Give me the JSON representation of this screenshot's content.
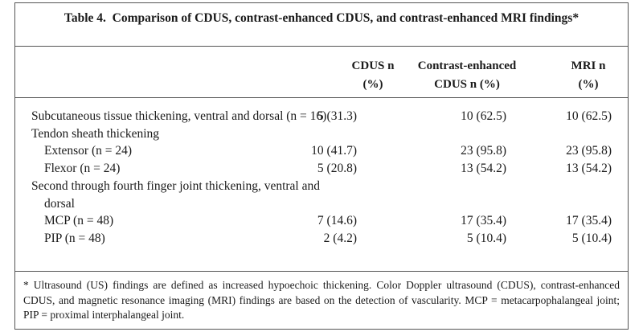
{
  "table": {
    "title": "Table 4.  Comparison of CDUS, contrast-enhanced CDUS, and contrast-enhanced MRI findings*",
    "columns": [
      "CDUS n (%)",
      "Contrast-enhanced CDUS n (%)",
      "MRI n (%)"
    ],
    "rows": [
      {
        "label": "Subcutaneous tissue thickening, ventral and dorsal (n = 16)",
        "values": [
          "5 (31.3)",
          "10 (62.5)",
          "10 (62.5)"
        ]
      },
      {
        "label": "Tendon sheath thickening"
      },
      {
        "label": "Extensor (n = 24)",
        "values": [
          "10 (41.7)",
          "23 (95.8)",
          "23 (95.8)"
        ]
      },
      {
        "label": "Flexor (n = 24)",
        "values": [
          "5 (20.8)",
          "13 (54.2)",
          "13 (54.2)"
        ]
      },
      {
        "label": "Second through fourth finger joint thickening, ventral and dorsal"
      },
      {
        "label": "MCP (n = 48)",
        "values": [
          "7 (14.6)",
          "17 (35.4)",
          "17 (35.4)"
        ]
      },
      {
        "label": "PIP (n = 48)",
        "values": [
          "2 (4.2)",
          "5 (10.4)",
          "5 (10.4)"
        ]
      }
    ],
    "footnote": "* Ultrasound (US) findings are defined as increased hypoechoic thickening. Color Doppler ultrasound (CDUS), contrast-enhanced CDUS, and magnetic resonance imaging (MRI) findings are based on the detection of vascularity. MCP = metacarpophalangeal joint; PIP = proximal interphalangeal joint."
  }
}
